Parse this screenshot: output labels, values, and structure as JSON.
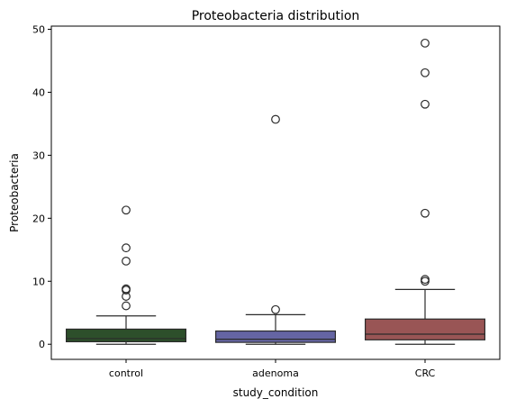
{
  "chart_data": {
    "type": "box",
    "title": "Proteobacteria distribution",
    "xlabel": "study_condition",
    "ylabel": "Proteobacteria",
    "ylim": [
      -2.4,
      50.5
    ],
    "yticks": [
      0,
      10,
      20,
      30,
      40,
      50
    ],
    "ytick_labels": [
      "0",
      "10",
      "20",
      "30",
      "40",
      "50"
    ],
    "grid": false,
    "categories": [
      "control",
      "adenoma",
      "CRC"
    ],
    "boxes": [
      {
        "category": "control",
        "color": "#2d4f2b",
        "whisker_low": 0.0,
        "q1": 0.4,
        "median": 0.9,
        "q3": 2.4,
        "whisker_high": 4.5,
        "outliers": [
          6.1,
          7.6,
          8.6,
          8.8,
          13.2,
          15.3,
          21.3
        ]
      },
      {
        "category": "adenoma",
        "color": "#6565a3",
        "whisker_low": 0.0,
        "q1": 0.3,
        "median": 0.8,
        "q3": 2.1,
        "whisker_high": 4.7,
        "outliers": [
          5.5,
          35.7
        ]
      },
      {
        "category": "CRC",
        "color": "#995555",
        "whisker_low": 0.0,
        "q1": 0.7,
        "median": 1.6,
        "q3": 4.0,
        "whisker_high": 8.7,
        "outliers": [
          10.0,
          10.3,
          20.8,
          38.1,
          43.1,
          47.8
        ]
      }
    ]
  }
}
